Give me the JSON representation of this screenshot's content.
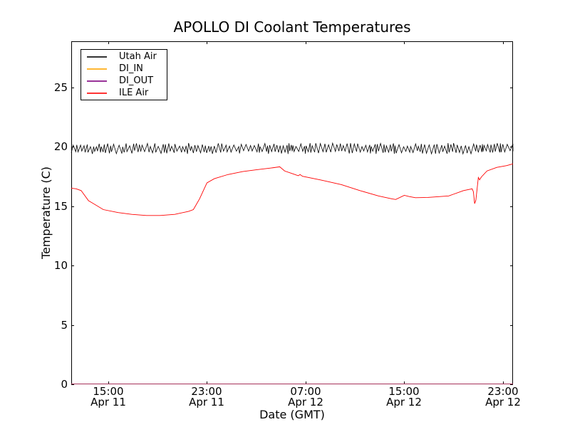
{
  "chart_data": {
    "type": "line",
    "title": "APOLLO DI Coolant Temperatures",
    "xlabel": "Date (GMT)",
    "ylabel": "Temperature (C)",
    "ylim": [
      0,
      28.9
    ],
    "yticks": [
      0,
      5,
      10,
      15,
      20,
      25
    ],
    "ytick_labels": [
      "0",
      "5",
      "10",
      "15",
      "20",
      "25"
    ],
    "xlim_hours": [
      0,
      35.81
    ],
    "grid": false,
    "legend_position": "upper left",
    "xticks": [
      {
        "hour": 3,
        "time": "15:00",
        "date": "Apr 11"
      },
      {
        "hour": 11,
        "time": "23:00",
        "date": "Apr 11"
      },
      {
        "hour": 19,
        "time": "07:00",
        "date": "Apr 12"
      },
      {
        "hour": 27,
        "time": "15:00",
        "date": "Apr 12"
      },
      {
        "hour": 35,
        "time": "23:00",
        "date": "Apr 12"
      }
    ],
    "series": [
      {
        "name": "Utah Air",
        "color": "#000000",
        "style": "oscillating",
        "mean": 19.85,
        "peak_base": 19.98,
        "peak_jitter": 0.32,
        "trough_base": 19.38,
        "trough_jitter": 0.28,
        "half_cycle_minutes": [
          3,
          14
        ],
        "seed": 42
      },
      {
        "name": "DI_IN",
        "color": "#ffa500",
        "style": "constant",
        "value": 0
      },
      {
        "name": "DI_OUT",
        "color": "#800080",
        "style": "constant",
        "value": 0,
        "overlay_opacity": 0.7
      },
      {
        "name": "ILE Air",
        "color": "#ff0000",
        "style": "points",
        "points": [
          [
            0,
            16.5
          ],
          [
            0.4,
            16.45
          ],
          [
            0.8,
            16.3
          ],
          [
            1.4,
            15.45
          ],
          [
            2.6,
            14.7
          ],
          [
            3.8,
            14.45
          ],
          [
            4.9,
            14.3
          ],
          [
            6.1,
            14.2
          ],
          [
            7.2,
            14.2
          ],
          [
            8.4,
            14.3
          ],
          [
            9.5,
            14.55
          ],
          [
            9.9,
            14.7
          ],
          [
            10.4,
            15.6
          ],
          [
            11.0,
            16.95
          ],
          [
            11.6,
            17.3
          ],
          [
            12.7,
            17.65
          ],
          [
            13.9,
            17.9
          ],
          [
            15.0,
            18.05
          ],
          [
            16.2,
            18.2
          ],
          [
            16.9,
            18.3
          ],
          [
            17.3,
            17.95
          ],
          [
            18.0,
            17.7
          ],
          [
            18.4,
            17.55
          ],
          [
            18.55,
            17.65
          ],
          [
            18.75,
            17.5
          ],
          [
            20.2,
            17.2
          ],
          [
            21.9,
            16.8
          ],
          [
            23.4,
            16.3
          ],
          [
            24.9,
            15.85
          ],
          [
            26.0,
            15.6
          ],
          [
            26.3,
            15.55
          ],
          [
            27.0,
            15.9
          ],
          [
            27.4,
            15.8
          ],
          [
            27.9,
            15.7
          ],
          [
            28.9,
            15.72
          ],
          [
            30.6,
            15.85
          ],
          [
            31.8,
            16.3
          ],
          [
            32.5,
            16.45
          ],
          [
            32.6,
            16.2
          ],
          [
            32.7,
            15.2
          ],
          [
            32.8,
            15.5
          ],
          [
            33.0,
            17.4
          ],
          [
            33.1,
            17.2
          ],
          [
            33.25,
            17.45
          ],
          [
            33.7,
            17.95
          ],
          [
            34.5,
            18.25
          ],
          [
            35.3,
            18.4
          ],
          [
            35.81,
            18.55
          ]
        ]
      }
    ]
  }
}
